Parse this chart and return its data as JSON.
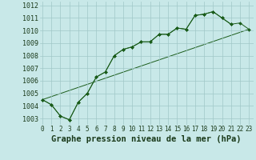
{
  "title": "Graphe pression niveau de la mer (hPa)",
  "background_color": "#c8e8e8",
  "grid_color": "#a0c8c8",
  "line_color": "#1a5c1a",
  "x_ticks": [
    0,
    1,
    2,
    3,
    4,
    5,
    6,
    7,
    8,
    9,
    10,
    11,
    12,
    13,
    14,
    15,
    16,
    17,
    18,
    19,
    20,
    21,
    22,
    23
  ],
  "y_ticks": [
    1003,
    1004,
    1005,
    1006,
    1007,
    1008,
    1009,
    1010,
    1011,
    1012
  ],
  "ylim": [
    1002.5,
    1012.3
  ],
  "xlim": [
    -0.3,
    23.5
  ],
  "series1_x": [
    0,
    1,
    2,
    3,
    4,
    5,
    6,
    7,
    8,
    9,
    10,
    11,
    12,
    13,
    14,
    15,
    16,
    17,
    18,
    19,
    20,
    21
  ],
  "series1_y": [
    1004.5,
    1004.1,
    1003.2,
    1002.9,
    1004.3,
    1005.0,
    1006.3,
    1006.7,
    1008.0,
    1008.5,
    1008.7,
    1009.1,
    1009.1,
    1009.7,
    1009.7,
    1010.2,
    1010.1,
    1011.2,
    1011.3,
    1011.5,
    1011.0,
    1010.5
  ],
  "series2_x": [
    0,
    1,
    2,
    3,
    4,
    5,
    6,
    7,
    8,
    9,
    10,
    11,
    12,
    13,
    14,
    15,
    16,
    17,
    18,
    19,
    20,
    21,
    22,
    23
  ],
  "series2_y": [
    1004.5,
    1004.1,
    1003.2,
    1002.9,
    1004.3,
    1005.0,
    1006.3,
    1006.7,
    1008.0,
    1008.5,
    1008.7,
    1009.1,
    1009.1,
    1009.7,
    1009.7,
    1010.2,
    1010.1,
    1011.2,
    1011.3,
    1011.5,
    1011.0,
    1010.5,
    1010.6,
    1010.1
  ],
  "series3_x": [
    0,
    23
  ],
  "series3_y": [
    1004.5,
    1010.1
  ],
  "font_size": 7,
  "tick_fontsize": 6,
  "xlabel_fontsize": 7.5
}
